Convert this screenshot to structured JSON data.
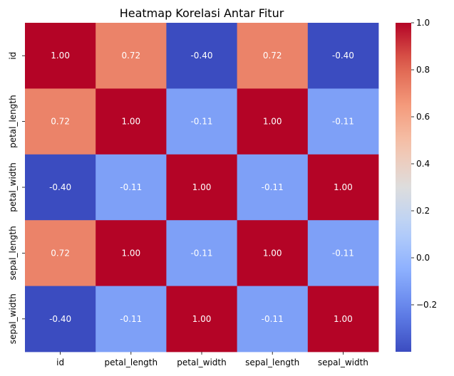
{
  "chart_data": {
    "type": "heatmap",
    "title": "Heatmap Korelasi Antar Fitur",
    "x_labels": [
      "id",
      "petal_length",
      "petal_width",
      "sepal_length",
      "sepal_width"
    ],
    "y_labels": [
      "id",
      "petal_length",
      "petal_width",
      "sepal_length",
      "sepal_width"
    ],
    "values": [
      [
        1.0,
        0.72,
        -0.4,
        0.72,
        -0.4
      ],
      [
        0.72,
        1.0,
        -0.11,
        1.0,
        -0.11
      ],
      [
        -0.4,
        -0.11,
        1.0,
        -0.11,
        1.0
      ],
      [
        0.72,
        1.0,
        -0.11,
        1.0,
        -0.11
      ],
      [
        -0.4,
        -0.11,
        1.0,
        -0.11,
        1.0
      ]
    ],
    "annotation_format": "0.00",
    "colormap": "coolwarm",
    "colorbar": {
      "range": [
        -0.4,
        1.0
      ],
      "ticks": [
        -0.2,
        0.0,
        0.2,
        0.4,
        0.6,
        0.8,
        1.0
      ],
      "tick_labels": [
        "−0.2",
        "0.0",
        "0.2",
        "0.4",
        "0.6",
        "0.8",
        "1.0"
      ]
    },
    "xlabel": "",
    "ylabel": ""
  }
}
